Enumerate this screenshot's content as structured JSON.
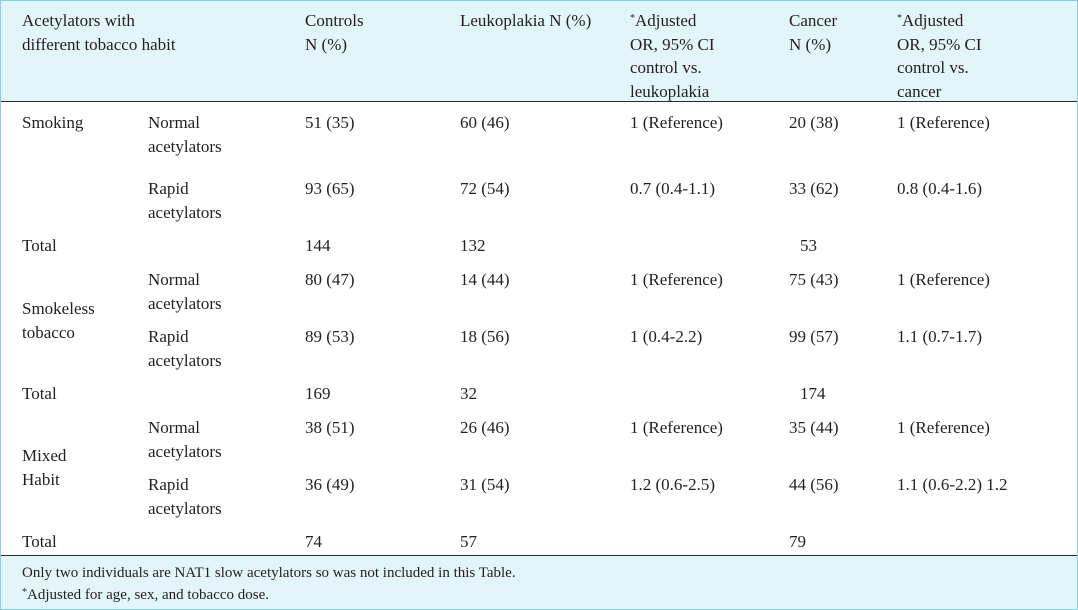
{
  "table": {
    "headers": [
      {
        "line1": "Acetylators with",
        "line2": "different tobacco habit",
        "line3": "",
        "line4": ""
      },
      {
        "line1": "Controls",
        "line2": "N (%)",
        "line3": "",
        "line4": ""
      },
      {
        "line1": "Leukoplakia N (%)",
        "line2": "",
        "line3": "",
        "line4": ""
      },
      {
        "line1": "Adjusted",
        "line2": "OR, 95% CI",
        "line3": "control vs.",
        "line4": "leukoplakia"
      },
      {
        "line1": "Cancer",
        "line2": "N (%)",
        "line3": "",
        "line4": ""
      },
      {
        "line1": "Adjusted",
        "line2": "OR, 95% CI",
        "line3": "control vs.",
        "line4": "cancer"
      }
    ],
    "asterisk": "*",
    "groups": [
      {
        "habit": {
          "line1": "Smoking",
          "line2": ""
        },
        "rows": [
          {
            "type": {
              "line1": "Normal",
              "line2": "acetylators"
            },
            "controls": "51 (35)",
            "leukoplakia": "60 (46)",
            "or_leuk": "1 (Reference)",
            "cancer": "20 (38)",
            "or_cancer": "1 (Reference)"
          },
          {
            "type": {
              "line1": "Rapid",
              "line2": "acetylators"
            },
            "controls": "93 (65)",
            "leukoplakia": "72 (54)",
            "or_leuk": "0.7 (0.4-1.1)",
            "cancer": "33 (62)",
            "or_cancer": "0.8 (0.4-1.6)"
          }
        ],
        "total": {
          "label": "Total",
          "controls": "144",
          "leukoplakia": "132",
          "cancer": "53"
        }
      },
      {
        "habit": {
          "line1": "Smokeless",
          "line2": "tobacco"
        },
        "rows": [
          {
            "type": {
              "line1": "Normal",
              "line2": "acetylators"
            },
            "controls": "80 (47)",
            "leukoplakia": "14 (44)",
            "or_leuk": "1 (Reference)",
            "cancer": "75 (43)",
            "or_cancer": "1 (Reference)"
          },
          {
            "type": {
              "line1": "Rapid",
              "line2": "acetylators"
            },
            "controls": "89 (53)",
            "leukoplakia": "18 (56)",
            "or_leuk": "1 (0.4-2.2)",
            "cancer": "99 (57)",
            "or_cancer": "1.1 (0.7-1.7)"
          }
        ],
        "total": {
          "label": "Total",
          "controls": "169",
          "leukoplakia": "32",
          "cancer": "174"
        }
      },
      {
        "habit": {
          "line1": "Mixed",
          "line2": "Habit"
        },
        "rows": [
          {
            "type": {
              "line1": "Normal",
              "line2": "acetylators"
            },
            "controls": "38 (51)",
            "leukoplakia": "26 (46)",
            "or_leuk": "1 (Reference)",
            "cancer": "35 (44)",
            "or_cancer": "1 (Reference)"
          },
          {
            "type": {
              "line1": "Rapid",
              "line2": "acetylators"
            },
            "controls": "36 (49)",
            "leukoplakia": "31 (54)",
            "or_leuk": "1.2 (0.6-2.5)",
            "cancer": "44 (56)",
            "or_cancer": "1.1 (0.6-2.2) 1.2"
          }
        ],
        "total": {
          "label": "Total",
          "controls": "74",
          "leukoplakia": "57",
          "cancer": "79"
        }
      }
    ]
  },
  "footnotes": {
    "note1": "Only two individuals are NAT1 slow acetylators so was not included in this Table.",
    "note2_marker": "*",
    "note2": "Adjusted for age, sex, and tobacco dose."
  }
}
